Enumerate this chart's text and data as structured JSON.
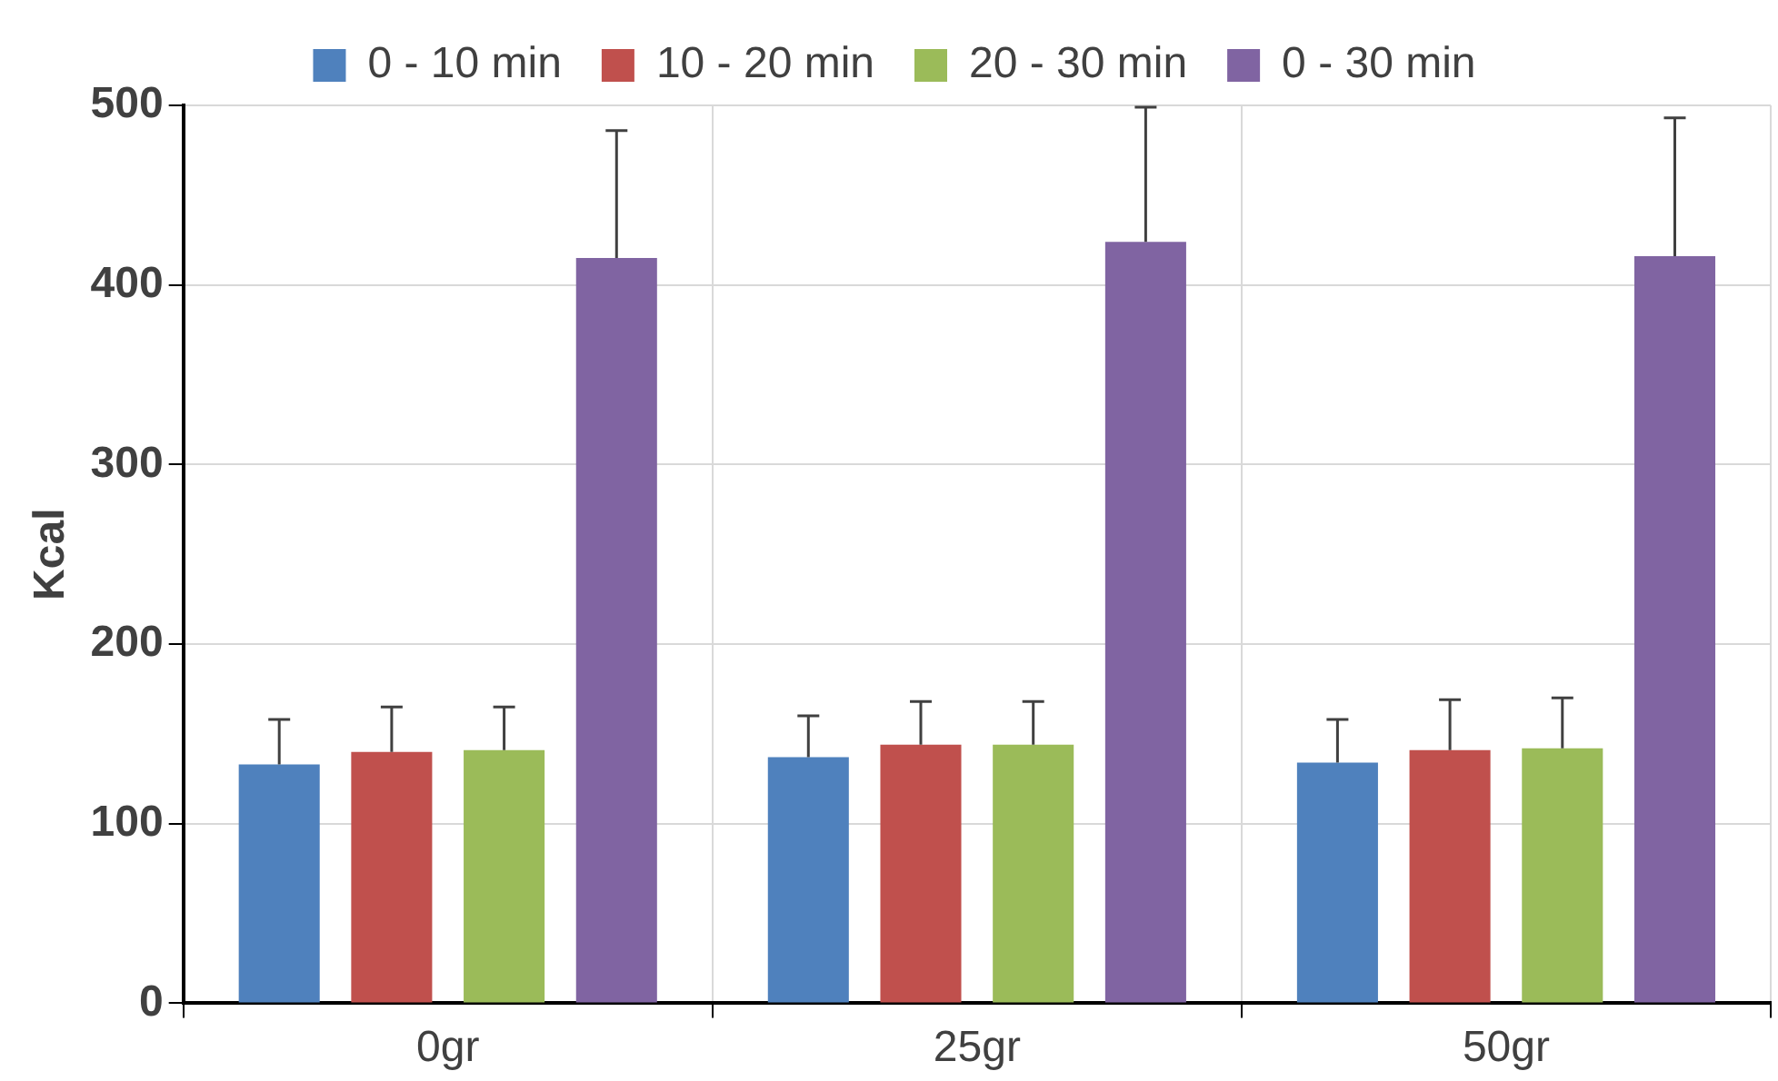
{
  "chart_data": {
    "type": "bar",
    "ylabel": "Kcal",
    "categories": [
      "0gr",
      "25gr",
      "50gr"
    ],
    "series": [
      {
        "name": "0 - 10 min",
        "color": "#4f81bd",
        "values": [
          133,
          137,
          134
        ],
        "errors": [
          [
            133,
            158
          ],
          [
            137,
            160
          ],
          [
            134,
            158
          ]
        ]
      },
      {
        "name": "10 - 20 min",
        "color": "#c0504d",
        "values": [
          140,
          144,
          141
        ],
        "errors": [
          [
            140,
            165
          ],
          [
            144,
            168
          ],
          [
            141,
            169
          ]
        ]
      },
      {
        "name": "20 - 30 min",
        "color": "#9bbb59",
        "values": [
          141,
          144,
          142
        ],
        "errors": [
          [
            141,
            165
          ],
          [
            144,
            168
          ],
          [
            142,
            170
          ]
        ]
      },
      {
        "name": "0 - 30 min",
        "color": "#8064a2",
        "values": [
          415,
          424,
          416
        ],
        "errors": [
          [
            415,
            486
          ],
          [
            424,
            499
          ],
          [
            416,
            493
          ]
        ]
      }
    ],
    "ylim": [
      0,
      500
    ],
    "yticks": [
      0,
      100,
      200,
      300,
      400,
      500
    ],
    "grid": true,
    "legend": "top"
  }
}
